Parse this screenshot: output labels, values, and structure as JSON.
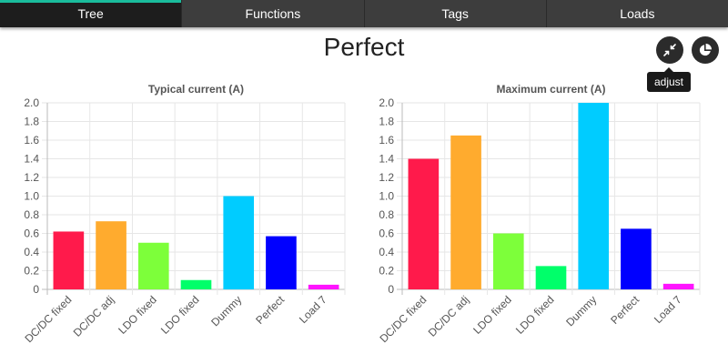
{
  "tabs": [
    {
      "label": "Tree",
      "active": true
    },
    {
      "label": "Functions",
      "active": false
    },
    {
      "label": "Tags",
      "active": false
    },
    {
      "label": "Loads",
      "active": false
    }
  ],
  "page_title": "Perfect",
  "buttons": {
    "adjust_icon": "compress-arrows-icon",
    "pie_icon": "pie-chart-icon",
    "tooltip": "adjust"
  },
  "colors": {
    "tab_accent": "#1abc9c",
    "bars": [
      "#ff1a4b",
      "#ffab2e",
      "#7dff3a",
      "#00ff6a",
      "#00ccff",
      "#0000ff",
      "#ff14ff"
    ]
  },
  "chart_data": [
    {
      "type": "bar",
      "title": "Typical current (A)",
      "categories": [
        "DC/DC fixed",
        "DC/DC adj",
        "LDO fixed",
        "LDO fixed",
        "Dummy",
        "Perfect",
        "Load 7"
      ],
      "values": [
        0.62,
        0.73,
        0.5,
        0.1,
        1.0,
        0.57,
        0.05
      ],
      "ylim": [
        0,
        2.0
      ],
      "yticks": [
        "0",
        "0.2",
        "0.4",
        "0.6",
        "0.8",
        "1.0",
        "1.2",
        "1.4",
        "1.6",
        "1.8",
        "2.0"
      ],
      "grid": true,
      "legend": "none"
    },
    {
      "type": "bar",
      "title": "Maximum current (A)",
      "categories": [
        "DC/DC fixed",
        "DC/DC adj",
        "LDO fixed",
        "LDO fixed",
        "Dummy",
        "Perfect",
        "Load 7"
      ],
      "values": [
        1.4,
        1.65,
        0.6,
        0.25,
        2.0,
        0.65,
        0.06
      ],
      "ylim": [
        0,
        2.0
      ],
      "yticks": [
        "0",
        "0.2",
        "0.4",
        "0.6",
        "0.8",
        "1.0",
        "1.2",
        "1.4",
        "1.6",
        "1.8",
        "2.0"
      ],
      "grid": true,
      "legend": "none"
    }
  ]
}
